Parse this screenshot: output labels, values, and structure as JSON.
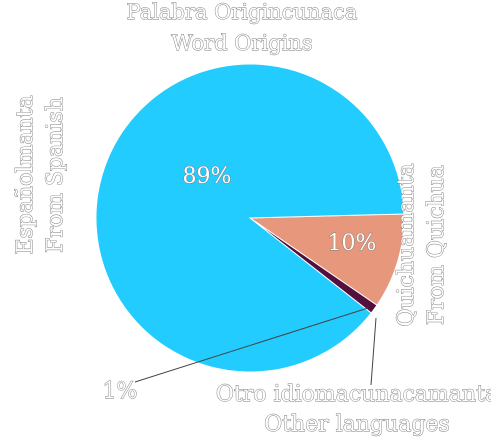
{
  "chart_data": {
    "type": "pie",
    "title": "Palabra Origincunaca",
    "subtitle": "Word Origins",
    "slices": [
      {
        "label_line1": "Españolmanta",
        "label_line2": "From Spanish",
        "value": 89,
        "pct_label": "89%",
        "color": "#22ccff"
      },
      {
        "label_line1": "Quichuamanta",
        "label_line2": "From Quichua",
        "value": 10,
        "pct_label": "10%",
        "color": "#e6977c"
      },
      {
        "label_line1": "Otro idiomacunacamanta",
        "label_line2": "Other languages",
        "value": 1,
        "pct_label": "1%",
        "color": "#54103c"
      }
    ]
  }
}
